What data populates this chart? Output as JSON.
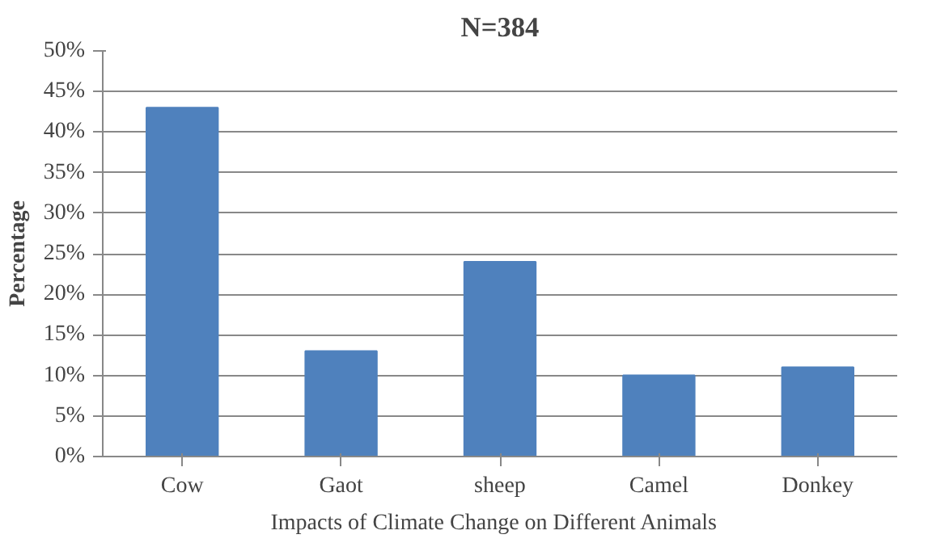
{
  "chart_data": {
    "type": "bar",
    "title": "N=384",
    "xlabel": "Impacts of Climate  Change on Different  Animals",
    "ylabel": "Percentage",
    "categories": [
      "Cow",
      "Gaot",
      "sheep",
      "Camel",
      "Donkey"
    ],
    "values": [
      43,
      13,
      24,
      10,
      11
    ],
    "color": "#4f81bd",
    "ylim": [
      0,
      50
    ],
    "yticks": [
      {
        "value": 0,
        "label": "0%"
      },
      {
        "value": 5,
        "label": "5%"
      },
      {
        "value": 10,
        "label": "10%"
      },
      {
        "value": 15,
        "label": "15%"
      },
      {
        "value": 20,
        "label": "20%"
      },
      {
        "value": 25,
        "label": "25%"
      },
      {
        "value": 30,
        "label": "30%"
      },
      {
        "value": 35,
        "label": "35%"
      },
      {
        "value": 40,
        "label": "40%"
      },
      {
        "value": 45,
        "label": "45%"
      },
      {
        "value": 50,
        "label": "50%"
      }
    ],
    "grid": "y"
  }
}
